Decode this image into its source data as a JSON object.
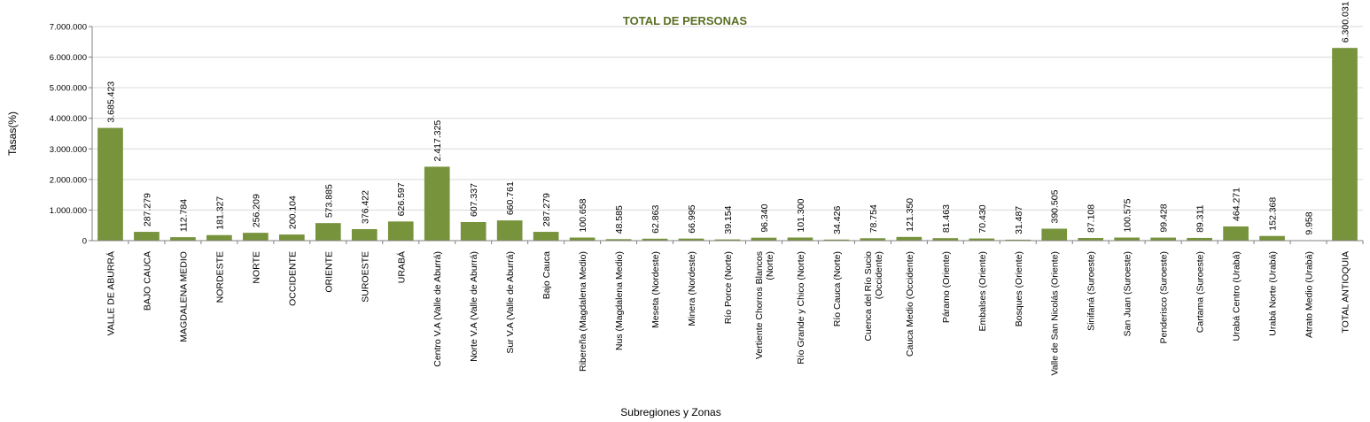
{
  "chart_data": {
    "type": "bar",
    "title": "TOTAL DE PERSONAS",
    "xlabel": "Subregiones y Zonas",
    "ylabel": "Tasas(%)",
    "ylim": [
      0,
      7000000
    ],
    "yticks": [
      "0",
      "1.000.000",
      "2.000.000",
      "3.000.000",
      "4.000.000",
      "5.000.000",
      "6.000.000",
      "7.000.000"
    ],
    "grid": true,
    "bar_color": "#77933c",
    "categories": [
      [
        "VALLE DE ABURRÁ"
      ],
      [
        "BAJO CAUCA"
      ],
      [
        "MAGDALENA MEDIO"
      ],
      [
        "NORDESTE"
      ],
      [
        "NORTE"
      ],
      [
        "OCCIDENTE"
      ],
      [
        "ORIENTE"
      ],
      [
        "SUROESTE"
      ],
      [
        "URABÁ"
      ],
      [
        "Centro V.A (Valle de Aburrá)"
      ],
      [
        "Norte V.A (Valle de Aburrá)"
      ],
      [
        "Sur V.A (Valle de Aburrá)"
      ],
      [
        "Bajo Cauca"
      ],
      [
        "Ribereña  (Magdalena Medio)"
      ],
      [
        "Nus  (Magdalena Medio)"
      ],
      [
        "Meseta  (Nordeste)"
      ],
      [
        "Minera  (Nordeste)"
      ],
      [
        "Río Porce   (Norte)"
      ],
      [
        "Vertiente Chorros Blancos",
        "(Norte)"
      ],
      [
        "Río Grande y Chico  (Norte)"
      ],
      [
        "Río Cauca  (Norte)"
      ],
      [
        "Cuenca del Río Sucio",
        "(Occidente)"
      ],
      [
        "Cauca Medio  (Occidente)"
      ],
      [
        "Páramo  (Oriente)"
      ],
      [
        "Embalses  (Oriente)"
      ],
      [
        "Bosques  (Oriente)"
      ],
      [
        "Valle de San Nicolás  (Oriente)"
      ],
      [
        "Sinifaná  (Suroeste)"
      ],
      [
        "San Juan  (Suroeste)"
      ],
      [
        "Penderisco  (Suroeste)"
      ],
      [
        "Cartama  (Suroeste)"
      ],
      [
        "Urabá Centro  (Urabá)"
      ],
      [
        "Urabá Norte  (Urabá)"
      ],
      [
        "Atrato Medio  (Urabá)"
      ],
      [
        "TOTAL ANTIOQUIA"
      ]
    ],
    "values": [
      3685423,
      287279,
      112784,
      181327,
      256209,
      200104,
      573885,
      376422,
      626597,
      2417325,
      607337,
      660761,
      287279,
      100658,
      48585,
      62863,
      66995,
      39154,
      96340,
      101300,
      34426,
      78754,
      121350,
      81463,
      70430,
      31487,
      390505,
      87108,
      100575,
      99428,
      89311,
      464271,
      152368,
      9958,
      6300031
    ],
    "data_labels": [
      "3.685.423",
      "287.279",
      "112.784",
      "181.327",
      "256.209",
      "200.104",
      "573.885",
      "376.422",
      "626.597",
      "2.417.325",
      "607.337",
      "660.761",
      "287.279",
      "100.658",
      "48.585",
      "62.863",
      "66.995",
      "39.154",
      "96.340",
      "101.300",
      "34.426",
      "78.754",
      "121.350",
      "81.463",
      "70.430",
      "31.487",
      "390.505",
      "87.108",
      "100.575",
      "99.428",
      "89.311",
      "464.271",
      "152.368",
      "9.958",
      "6.300.031"
    ]
  }
}
